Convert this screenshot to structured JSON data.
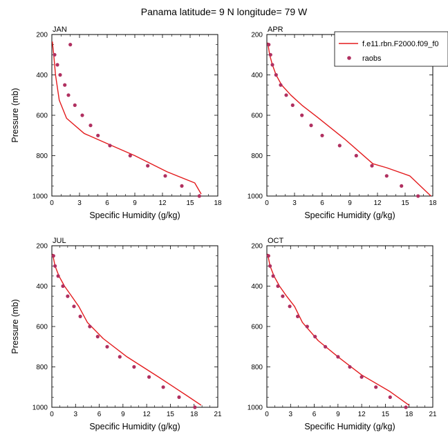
{
  "figure": {
    "title": "Panama  latitude= 9 N longitude= 79 W"
  },
  "legend": {
    "items": [
      {
        "label": "f.e11.rbn.F2000.f09_f0",
        "kind": "line",
        "color": "#e31a1c"
      },
      {
        "label": "raobs",
        "kind": "marker",
        "color": "#b03060"
      }
    ]
  },
  "colors": {
    "model_line": "#e31a1c",
    "raobs_marker": "#b03060",
    "frame": "#000000"
  },
  "chart_data": [
    {
      "type": "line",
      "panel": "JAN",
      "xlabel": "Specific Humidity (g/kg)",
      "ylabel": "Pressure (mb)",
      "xlim": [
        0,
        18
      ],
      "ylim": [
        1000,
        200
      ],
      "y_inverted": true,
      "xticks": [
        0,
        3,
        6,
        9,
        12,
        15,
        18
      ],
      "yticks": [
        200,
        400,
        600,
        800,
        1000
      ],
      "grid": false,
      "legend_position": "top-right",
      "series": [
        {
          "name": "f.e11.rbn.F2000.f09_f0",
          "style": "line",
          "x": [
            0.05,
            0.2,
            0.4,
            0.8,
            1.6,
            3.5,
            6,
            9,
            12.5,
            15.5,
            16.2
          ],
          "y": [
            235,
            300,
            400,
            525,
            615,
            690,
            740,
            800,
            880,
            935,
            990
          ]
        },
        {
          "name": "raobs",
          "style": "marker",
          "x": [
            2.0,
            0.3,
            0.6,
            0.9,
            1.4,
            1.8,
            2.5,
            3.3,
            4.2,
            5.0,
            6.3,
            8.5,
            10.4,
            12.3,
            14.1,
            16.0
          ],
          "y": [
            250,
            300,
            350,
            400,
            450,
            500,
            550,
            600,
            650,
            700,
            750,
            800,
            850,
            900,
            950,
            1000
          ]
        }
      ]
    },
    {
      "type": "line",
      "panel": "APR",
      "xlabel": "Specific Humidity (g/kg)",
      "ylabel": "",
      "xlim": [
        0,
        18
      ],
      "ylim": [
        1000,
        200
      ],
      "y_inverted": true,
      "xticks": [
        0,
        3,
        6,
        9,
        12,
        15,
        18
      ],
      "yticks": [
        200,
        400,
        600,
        800,
        1000
      ],
      "grid": false,
      "series": [
        {
          "name": "f.e11.rbn.F2000.f09_f0",
          "style": "line",
          "x": [
            0.1,
            0.3,
            0.6,
            1.0,
            1.6,
            2.6,
            3.8,
            5.5,
            8.5,
            11.5,
            13.0,
            15.5,
            17.8
          ],
          "y": [
            240,
            300,
            350,
            400,
            450,
            500,
            550,
            610,
            720,
            840,
            860,
            900,
            1000
          ]
        },
        {
          "name": "raobs",
          "style": "marker",
          "x": [
            0.2,
            0.4,
            0.6,
            1.0,
            1.5,
            2.1,
            2.8,
            3.8,
            4.8,
            6.0,
            7.9,
            9.7,
            11.4,
            13.0,
            14.6,
            16.4
          ],
          "y": [
            250,
            300,
            350,
            400,
            450,
            500,
            550,
            600,
            650,
            700,
            750,
            800,
            850,
            900,
            950,
            1000
          ]
        }
      ]
    },
    {
      "type": "line",
      "panel": "JUL",
      "xlabel": "Specific Humidity (g/kg)",
      "ylabel": "Pressure (mb)",
      "xlim": [
        0,
        21
      ],
      "ylim": [
        1000,
        200
      ],
      "y_inverted": true,
      "xticks": [
        0,
        3,
        6,
        9,
        12,
        15,
        18,
        21
      ],
      "yticks": [
        200,
        400,
        600,
        800,
        1000
      ],
      "grid": false,
      "series": [
        {
          "name": "f.e11.rbn.F2000.f09_f0",
          "style": "line",
          "x": [
            0.1,
            0.4,
            0.9,
            1.6,
            2.5,
            3.4,
            4.5,
            6.5,
            9.5,
            13.5,
            17,
            18.9
          ],
          "y": [
            240,
            300,
            350,
            400,
            450,
            500,
            580,
            660,
            750,
            850,
            940,
            990
          ]
        },
        {
          "name": "raobs",
          "style": "marker",
          "x": [
            0.2,
            0.4,
            0.8,
            1.4,
            2.0,
            2.8,
            3.6,
            4.8,
            5.8,
            7.0,
            8.6,
            10.4,
            12.3,
            14.1,
            16.1,
            18.1
          ],
          "y": [
            250,
            300,
            350,
            400,
            450,
            500,
            550,
            600,
            650,
            700,
            750,
            800,
            850,
            900,
            950,
            1000
          ]
        }
      ]
    },
    {
      "type": "line",
      "panel": "OCT",
      "xlabel": "Specific Humidity (g/kg)",
      "ylabel": "",
      "xlim": [
        0,
        21
      ],
      "ylim": [
        1000,
        200
      ],
      "y_inverted": true,
      "xticks": [
        0,
        3,
        6,
        9,
        12,
        15,
        18,
        21
      ],
      "yticks": [
        200,
        400,
        600,
        800,
        1000
      ],
      "grid": false,
      "series": [
        {
          "name": "f.e11.rbn.F2000.f09_f0",
          "style": "line",
          "x": [
            0.1,
            0.4,
            0.9,
            1.6,
            2.5,
            3.5,
            4.5,
            6.5,
            9,
            12,
            15.5,
            18.0
          ],
          "y": [
            240,
            300,
            350,
            400,
            450,
            500,
            580,
            670,
            750,
            840,
            920,
            990
          ]
        },
        {
          "name": "raobs",
          "style": "marker",
          "x": [
            0.2,
            0.4,
            0.8,
            1.4,
            2.0,
            2.9,
            3.9,
            5.1,
            6.1,
            7.4,
            9.0,
            10.5,
            12.0,
            13.8,
            15.6,
            17.6
          ],
          "y": [
            250,
            300,
            350,
            400,
            450,
            500,
            550,
            600,
            650,
            700,
            750,
            800,
            850,
            900,
            950,
            1000
          ]
        }
      ]
    }
  ]
}
